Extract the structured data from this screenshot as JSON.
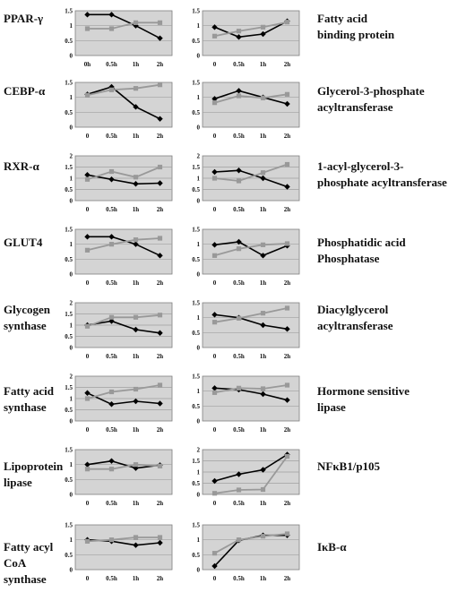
{
  "chart_data": [
    {
      "type": "line",
      "label": "PPAR-γ",
      "categories": [
        "0h",
        "0.5h",
        "1h",
        "2h"
      ],
      "ylim": [
        0,
        1.5
      ],
      "yticks": [
        "0",
        "0.5",
        "1",
        "1.5"
      ],
      "series": [
        {
          "values": [
            1.37,
            1.37,
            1.0,
            0.58
          ],
          "color": "#000000",
          "marker": "diamond"
        },
        {
          "values": [
            0.9,
            0.9,
            1.1,
            1.1
          ],
          "color": "#999999",
          "marker": "square"
        }
      ]
    },
    {
      "type": "line",
      "label": "Fatty acid\nbinding protein",
      "categories": [
        "0",
        "0.5h",
        "1h",
        "2h"
      ],
      "ylim": [
        0,
        1.5
      ],
      "yticks": [
        "0",
        "0.5",
        "1",
        "1.5"
      ],
      "series": [
        {
          "values": [
            0.95,
            0.62,
            0.72,
            1.15
          ],
          "color": "#000000",
          "marker": "diamond"
        },
        {
          "values": [
            0.65,
            0.82,
            0.95,
            1.12
          ],
          "color": "#999999",
          "marker": "square"
        }
      ]
    },
    {
      "type": "line",
      "label": "CEBP-α",
      "categories": [
        "0",
        "0.5h",
        "1h",
        "2h"
      ],
      "ylim": [
        0,
        1.5
      ],
      "yticks": [
        "0",
        "0.5",
        "1",
        "1.5"
      ],
      "series": [
        {
          "values": [
            1.1,
            1.35,
            0.68,
            0.28
          ],
          "color": "#000000",
          "marker": "diamond"
        },
        {
          "values": [
            1.07,
            1.25,
            1.3,
            1.42
          ],
          "color": "#999999",
          "marker": "square"
        }
      ]
    },
    {
      "type": "line",
      "label": "Glycerol-3-phosphate\nacyltransferase",
      "categories": [
        "0",
        "0.5h",
        "1h",
        "2h"
      ],
      "ylim": [
        0,
        1.5
      ],
      "yticks": [
        "0",
        "0.5",
        "1",
        "1.5"
      ],
      "series": [
        {
          "values": [
            0.95,
            1.22,
            1.0,
            0.78
          ],
          "color": "#000000",
          "marker": "diamond"
        },
        {
          "values": [
            0.82,
            1.05,
            0.98,
            1.1
          ],
          "color": "#999999",
          "marker": "square"
        }
      ]
    },
    {
      "type": "line",
      "label": "RXR-α",
      "categories": [
        "0",
        "0.5h",
        "1h",
        "2h"
      ],
      "ylim": [
        0,
        2
      ],
      "yticks": [
        "0",
        "0.5",
        "1",
        "1.5",
        "2"
      ],
      "series": [
        {
          "values": [
            1.15,
            0.95,
            0.75,
            0.78
          ],
          "color": "#000000",
          "marker": "diamond"
        },
        {
          "values": [
            0.95,
            1.3,
            1.05,
            1.5
          ],
          "color": "#999999",
          "marker": "square"
        }
      ]
    },
    {
      "type": "line",
      "label": "1-acyl-glycerol-3-\nphosphate acyltransferase",
      "categories": [
        "0",
        "0.5h",
        "1h",
        "2h"
      ],
      "ylim": [
        0,
        2
      ],
      "yticks": [
        "0",
        "0.5",
        "1",
        "1.5",
        "2"
      ],
      "series": [
        {
          "values": [
            1.28,
            1.35,
            1.0,
            0.62
          ],
          "color": "#000000",
          "marker": "diamond"
        },
        {
          "values": [
            1.0,
            0.88,
            1.25,
            1.62
          ],
          "color": "#999999",
          "marker": "square"
        }
      ]
    },
    {
      "type": "line",
      "label": "GLUT4",
      "categories": [
        "0",
        "0.5h",
        "1h",
        "2h"
      ],
      "ylim": [
        0,
        1.5
      ],
      "yticks": [
        "0",
        "0.5",
        "1",
        "1.5"
      ],
      "series": [
        {
          "values": [
            1.25,
            1.25,
            1.0,
            0.62
          ],
          "color": "#000000",
          "marker": "diamond"
        },
        {
          "values": [
            0.8,
            1.0,
            1.15,
            1.2
          ],
          "color": "#999999",
          "marker": "square"
        }
      ]
    },
    {
      "type": "line",
      "label": "Phosphatidic acid\nPhosphatase",
      "categories": [
        "0",
        "0.5h",
        "1h",
        "2h"
      ],
      "ylim": [
        0,
        1.5
      ],
      "yticks": [
        "0",
        "0.5",
        "1",
        "1.5"
      ],
      "series": [
        {
          "values": [
            0.98,
            1.08,
            0.62,
            0.95
          ],
          "color": "#000000",
          "marker": "diamond"
        },
        {
          "values": [
            0.62,
            0.85,
            0.98,
            1.02
          ],
          "color": "#999999",
          "marker": "square"
        }
      ]
    },
    {
      "type": "line",
      "label": "Glycogen\nsynthase",
      "categories": [
        "0",
        "0.5h",
        "1h",
        "2h"
      ],
      "ylim": [
        0,
        2
      ],
      "yticks": [
        "0",
        "0.5",
        "1",
        "1.5",
        "2"
      ],
      "series": [
        {
          "values": [
            1.0,
            1.18,
            0.8,
            0.65
          ],
          "color": "#000000",
          "marker": "diamond"
        },
        {
          "values": [
            0.95,
            1.35,
            1.35,
            1.45
          ],
          "color": "#999999",
          "marker": "square"
        }
      ]
    },
    {
      "type": "line",
      "label": "Diacylglycerol\nacyltransferase",
      "categories": [
        "0",
        "0.5h",
        "1h",
        "2h"
      ],
      "ylim": [
        0,
        1.5
      ],
      "yticks": [
        "0",
        "0.5",
        "1",
        "1.5"
      ],
      "series": [
        {
          "values": [
            1.1,
            1.0,
            0.75,
            0.62
          ],
          "color": "#000000",
          "marker": "diamond"
        },
        {
          "values": [
            0.85,
            0.98,
            1.15,
            1.32
          ],
          "color": "#999999",
          "marker": "square"
        }
      ]
    },
    {
      "type": "line",
      "label": "Fatty acid\nsynthase",
      "categories": [
        "0",
        "0.5h",
        "1h",
        "2h"
      ],
      "ylim": [
        0,
        2
      ],
      "yticks": [
        "0",
        "0.5",
        "1",
        "1.5",
        "2"
      ],
      "series": [
        {
          "values": [
            1.25,
            0.75,
            0.88,
            0.78
          ],
          "color": "#000000",
          "marker": "diamond"
        },
        {
          "values": [
            1.0,
            1.3,
            1.42,
            1.6
          ],
          "color": "#999999",
          "marker": "square"
        }
      ]
    },
    {
      "type": "line",
      "label": "Hormone sensitive\nlipase",
      "categories": [
        "0",
        "0.5h",
        "1h",
        "2h"
      ],
      "ylim": [
        0,
        1.5
      ],
      "yticks": [
        "0",
        "0.5",
        "1",
        "1.5"
      ],
      "series": [
        {
          "values": [
            1.1,
            1.05,
            0.9,
            0.7
          ],
          "color": "#000000",
          "marker": "diamond"
        },
        {
          "values": [
            0.95,
            1.1,
            1.08,
            1.2
          ],
          "color": "#999999",
          "marker": "square"
        }
      ]
    },
    {
      "type": "line",
      "label": "Lipoprotein\nlipase",
      "categories": [
        "0",
        "0.5h",
        "1h",
        "2h"
      ],
      "ylim": [
        0,
        1.5
      ],
      "yticks": [
        "0",
        "0.5",
        "1",
        "1.5"
      ],
      "series": [
        {
          "values": [
            1.0,
            1.12,
            0.88,
            0.98
          ],
          "color": "#000000",
          "marker": "diamond"
        },
        {
          "values": [
            0.85,
            0.85,
            1.0,
            0.95
          ],
          "color": "#999999",
          "marker": "square"
        }
      ]
    },
    {
      "type": "line",
      "label": "NFκB1/p105",
      "categories": [
        "0",
        "0.5h",
        "1h",
        "2h"
      ],
      "ylim": [
        0,
        2
      ],
      "yticks": [
        "0",
        "0.5",
        "1",
        "1.5",
        "2"
      ],
      "series": [
        {
          "values": [
            0.6,
            0.9,
            1.1,
            1.78
          ],
          "color": "#000000",
          "marker": "diamond"
        },
        {
          "values": [
            0.05,
            0.2,
            0.22,
            1.7
          ],
          "color": "#999999",
          "marker": "square"
        }
      ]
    },
    {
      "type": "line",
      "label": "Fatty acyl\nCoA\nsynthase",
      "categories": [
        "0",
        "0.5h",
        "1h",
        "2h"
      ],
      "ylim": [
        0,
        1.5
      ],
      "yticks": [
        "0",
        "0.5",
        "1",
        "1.5"
      ],
      "series": [
        {
          "values": [
            1.0,
            0.95,
            0.82,
            0.9
          ],
          "color": "#000000",
          "marker": "diamond"
        },
        {
          "values": [
            0.95,
            1.0,
            1.08,
            1.08
          ],
          "color": "#999999",
          "marker": "square"
        }
      ]
    },
    {
      "type": "line",
      "label": "IκB-α",
      "categories": [
        "0",
        "0.5h",
        "1h",
        "2h"
      ],
      "ylim": [
        0,
        1.5
      ],
      "yticks": [
        "0",
        "0.5",
        "1",
        "1.5"
      ],
      "series": [
        {
          "values": [
            0.12,
            0.98,
            1.15,
            1.15
          ],
          "color": "#000000",
          "marker": "diamond"
        },
        {
          "values": [
            0.55,
            1.0,
            1.12,
            1.2
          ],
          "color": "#999999",
          "marker": "square"
        }
      ]
    }
  ]
}
